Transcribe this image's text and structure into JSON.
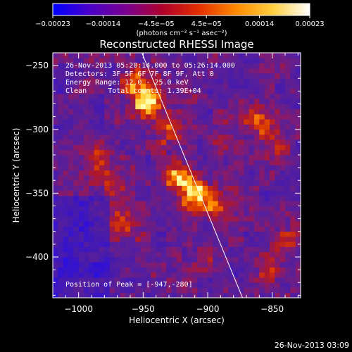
{
  "chart_data": {
    "type": "heatmap",
    "title": "Reconstructed RHESSI Image",
    "xlabel": "Heliocentric X (arcsec)",
    "ylabel": "Heliocentric Y (arcsec)",
    "xlim": [
      -1020,
      -828
    ],
    "ylim": [
      -432,
      -240
    ],
    "x_ticks": [
      -1000,
      -950,
      -900,
      -850
    ],
    "x_tick_labels": [
      "−1000",
      "−950",
      "−900",
      "−850"
    ],
    "y_ticks": [
      -250,
      -300,
      -350,
      -400
    ],
    "y_tick_labels": [
      "−250",
      "−300",
      "−350",
      "−400"
    ],
    "colorbar": {
      "min": -0.00023,
      "max": 0.00023,
      "tick_values": [
        -0.00023,
        -0.00014,
        -4.5e-05,
        4.5e-05,
        0.00014,
        0.00023
      ],
      "tick_labels": [
        "−0.00023",
        "−0.00014",
        "−4.5e−05",
        "4.5e−05",
        "0.00014",
        "0.00023"
      ],
      "unit_label": "(photons cm⁻² s⁻¹ asec⁻²)",
      "colors": [
        "#0000ff",
        "#4a00c8",
        "#7a0090",
        "#b0002a",
        "#e53000",
        "#ff8a00",
        "#ffd040",
        "#ffffff"
      ]
    },
    "annotations": [
      "26-Nov-2013 05:20:14.000 to 05:26:14.000",
      "Detectors: 3F 5F 6F 7F 8F 9F, Att 0",
      "Energy Range: 12.0 - 25.0 keV",
      "Clean     Total counts: 1.39E+04"
    ],
    "peak_label": "Position of Peak = [-947,-280]",
    "peak": [
      -947,
      -280
    ],
    "limb_line": [
      [
        -951,
        -240
      ],
      [
        -873,
        -432
      ]
    ],
    "sources": [
      {
        "x": -947,
        "y": -280,
        "amp": 1.0
      },
      {
        "x": -955,
        "y": -262,
        "amp": 0.5
      },
      {
        "x": -930,
        "y": -300,
        "amp": 0.55
      },
      {
        "x": -912,
        "y": -348,
        "amp": 0.95
      },
      {
        "x": -925,
        "y": -335,
        "amp": 0.6
      },
      {
        "x": -895,
        "y": -360,
        "amp": 0.5
      },
      {
        "x": -965,
        "y": -375,
        "amp": 0.55
      },
      {
        "x": -985,
        "y": -325,
        "amp": 0.4
      },
      {
        "x": -975,
        "y": -345,
        "amp": 0.3
      },
      {
        "x": -860,
        "y": -295,
        "amp": 0.55
      },
      {
        "x": -850,
        "y": -315,
        "amp": 0.4
      },
      {
        "x": -888,
        "y": -308,
        "amp": 0.35
      },
      {
        "x": -840,
        "y": -385,
        "amp": 0.45
      },
      {
        "x": -852,
        "y": -410,
        "amp": 0.45
      },
      {
        "x": -915,
        "y": -265,
        "amp": 0.25
      },
      {
        "x": -905,
        "y": -405,
        "amp": 0.25
      },
      {
        "x": -1002,
        "y": -268,
        "amp": 0.25
      }
    ]
  },
  "footer": {
    "date": "26-Nov-2013 03:09"
  }
}
